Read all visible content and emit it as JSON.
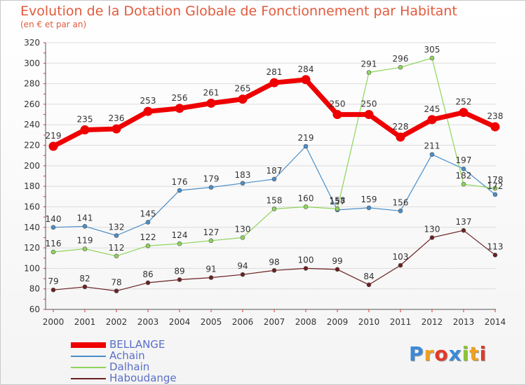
{
  "chart_data": {
    "type": "line",
    "title": "Evolution de la Dotation Globale de Fonctionnement par Habitant",
    "subtitle": "(en € et par an)",
    "x": [
      "2000",
      "2001",
      "2002",
      "2003",
      "2004",
      "2005",
      "2006",
      "2007",
      "2008",
      "2009",
      "2010",
      "2011",
      "2012",
      "2013",
      "2014"
    ],
    "ylim": [
      60,
      320
    ],
    "yticks": [
      60,
      80,
      100,
      120,
      140,
      160,
      180,
      200,
      220,
      240,
      260,
      280,
      300,
      320
    ],
    "grid": "horizontal",
    "legend_position": "bottom-left",
    "series": [
      {
        "name": "BELLANGE",
        "color": "#ee0000",
        "values": [
          219,
          235,
          236,
          253,
          256,
          261,
          265,
          281,
          284,
          250,
          250,
          228,
          245,
          252,
          238
        ]
      },
      {
        "name": "Achain",
        "color": "#4a8ec8",
        "values": [
          140,
          141,
          132,
          145,
          176,
          179,
          183,
          187,
          219,
          157,
          159,
          156,
          211,
          197,
          172
        ]
      },
      {
        "name": "Dalhain",
        "color": "#8ed45a",
        "values": [
          116,
          119,
          112,
          122,
          124,
          127,
          130,
          158,
          160,
          158,
          291,
          296,
          305,
          182,
          178
        ]
      },
      {
        "name": "Haboudange",
        "color": "#6b1f22",
        "values": [
          79,
          82,
          78,
          86,
          89,
          91,
          94,
          98,
          100,
          99,
          84,
          103,
          130,
          137,
          113
        ]
      }
    ],
    "data_labels": {
      "BELLANGE": [
        "219",
        "235",
        "236",
        "253",
        "256",
        "261",
        "265",
        "281",
        "284",
        "250",
        "250",
        "228",
        "245",
        "252",
        "238"
      ],
      "Achain": [
        "140",
        "141",
        "132",
        "145",
        "176",
        "179",
        "183",
        "187",
        "219",
        "157",
        "159",
        "156",
        "211",
        "197",
        "172"
      ],
      "Dalhain": [
        "116",
        "119",
        "112",
        "122",
        "124",
        "127",
        "130",
        "158",
        "160",
        "158",
        "291",
        "296",
        "305",
        "182",
        "178"
      ],
      "Haboudange": [
        "79",
        "82",
        "78",
        "86",
        "89",
        "91",
        "94",
        "98",
        "100",
        "99",
        "84",
        "103",
        "130",
        "137",
        "113"
      ]
    }
  },
  "brand": {
    "letters": [
      "P",
      "r",
      "o",
      "x",
      "i",
      "t",
      "i"
    ],
    "colors": [
      "#3a8ad8",
      "#f0a020",
      "#e23a2a",
      "#3a8ad8",
      "#8cc43a",
      "#f0a020",
      "#e23a2a"
    ]
  }
}
